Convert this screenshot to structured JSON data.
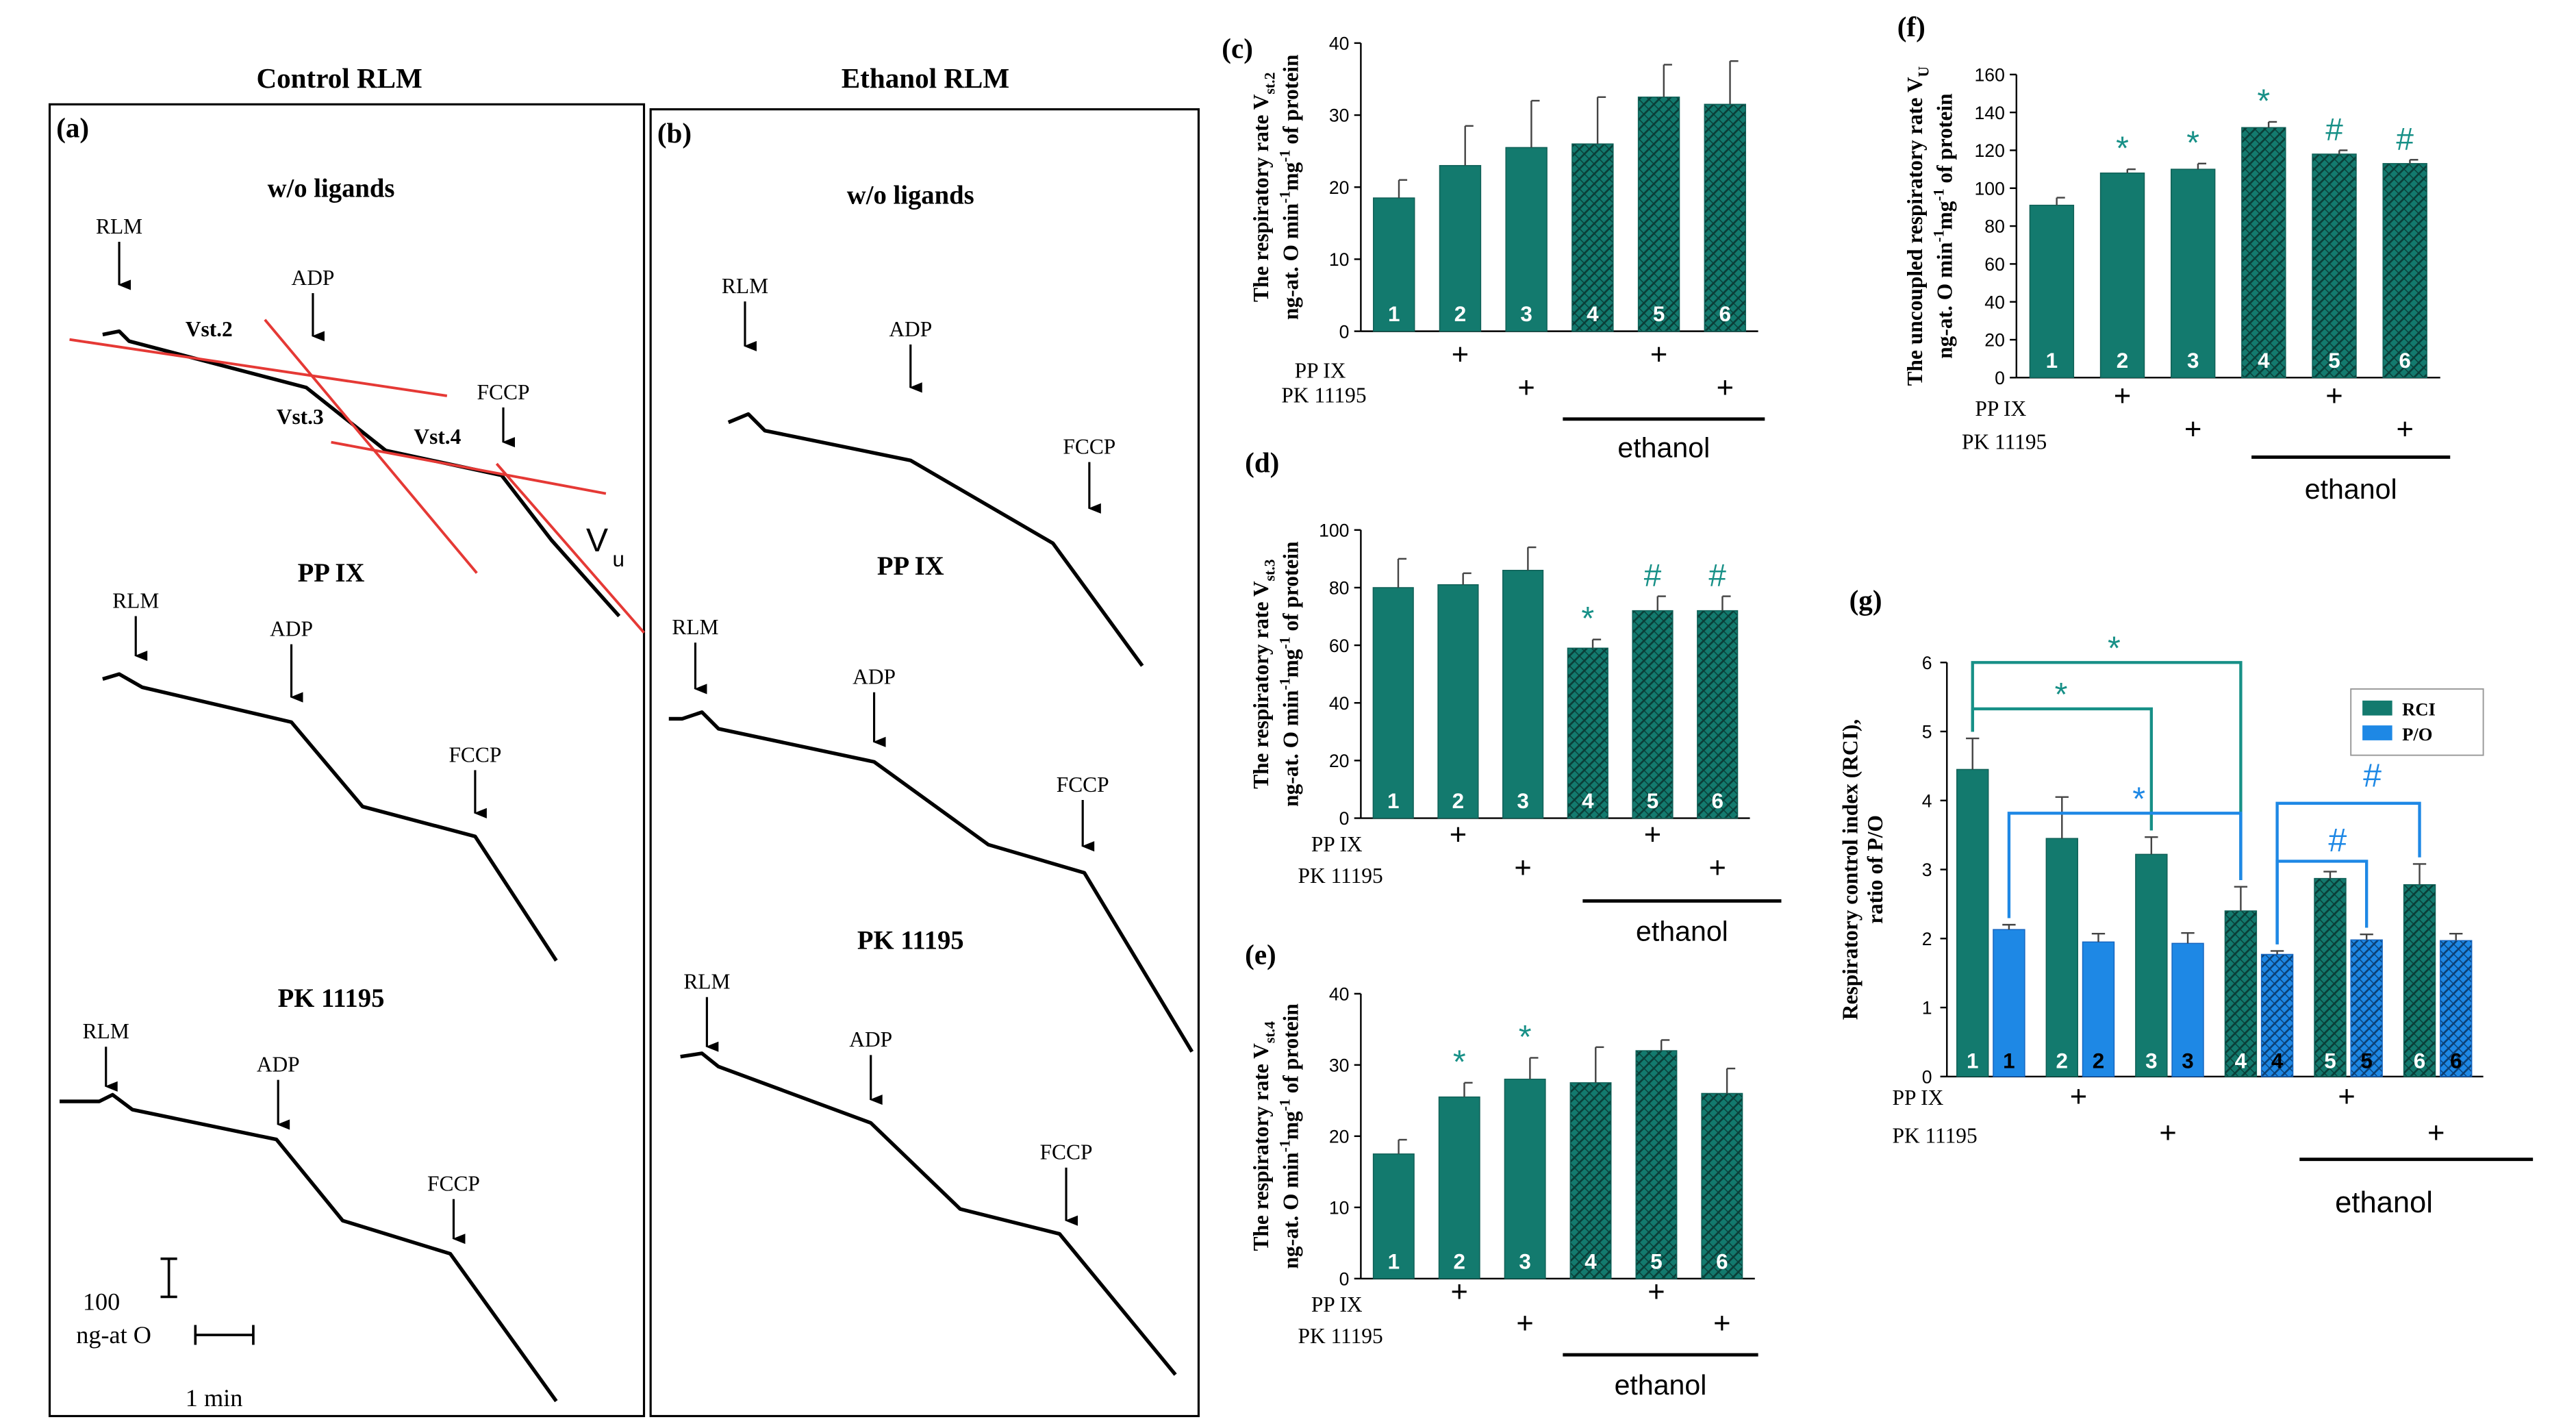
{
  "colors": {
    "teal": "#137a6e",
    "blue": "#1e88e5",
    "red": "#e53935",
    "stat_teal": "#179087",
    "stat_blue": "#1e88e5",
    "ink": "#000000"
  },
  "traces": [
    {
      "panel": "a",
      "header": "Control RLM",
      "sections": [
        {
          "title": "w/o ligands",
          "labels": [
            "RLM",
            "ADP",
            "FCCP",
            "Vst.2",
            "Vst.3",
            "Vst.4",
            "V",
            "u"
          ]
        },
        {
          "title": "PP IX",
          "labels": [
            "RLM",
            "ADP",
            "FCCP"
          ]
        },
        {
          "title": "PK 11195",
          "labels": [
            "RLM",
            "ADP",
            "FCCP"
          ]
        }
      ],
      "scale_y": "100",
      "scale_y_unit": "ng-at O",
      "scale_x": "1 min"
    },
    {
      "panel": "b",
      "header": "Ethanol RLM",
      "sections": [
        {
          "title": "w/o ligands",
          "labels": [
            "RLM",
            "ADP",
            "FCCP"
          ]
        },
        {
          "title": "PP IX",
          "labels": [
            "RLM",
            "ADP",
            "FCCP"
          ]
        },
        {
          "title": "PK 11195",
          "labels": [
            "RLM",
            "ADP",
            "FCCP"
          ]
        }
      ]
    }
  ],
  "chart_data": [
    {
      "panel": "c",
      "type": "bar",
      "ylim": [
        0,
        40
      ],
      "yticks": [
        0,
        10,
        20,
        30,
        40
      ],
      "ylabel_lines": [
        "The respiratory rate V",
        "st.2",
        "ng-at. O min",
        "-1",
        "mg",
        "-1",
        " of protein"
      ],
      "categories": [
        "1",
        "2",
        "3",
        "4",
        "5",
        "6"
      ],
      "values": [
        18.5,
        23,
        25.5,
        26,
        32.5,
        31.5
      ],
      "errors": [
        2.5,
        5.5,
        6.5,
        6.5,
        4.5,
        6
      ],
      "marks": [
        "",
        "",
        "",
        "",
        "",
        ""
      ],
      "treatments": {
        "pp_ix": "PP IX",
        "pk": "PK 11195",
        "plus": "+",
        "ethanol": "ethanol"
      }
    },
    {
      "panel": "d",
      "type": "bar",
      "ylim": [
        0,
        100
      ],
      "yticks": [
        0,
        20,
        40,
        60,
        80,
        100
      ],
      "ylabel_lines": [
        "The respiratory rate V",
        "st.3",
        "ng-at. O min",
        "-1",
        "mg",
        "-1",
        " of protein"
      ],
      "categories": [
        "1",
        "2",
        "3",
        "4",
        "5",
        "6"
      ],
      "values": [
        80,
        81,
        86,
        59,
        72,
        72
      ],
      "errors": [
        10,
        4,
        8,
        3,
        5,
        5
      ],
      "marks": [
        "",
        "",
        "",
        "*",
        "#",
        "#"
      ],
      "treatments": {
        "pp_ix": "PP IX",
        "pk": "PK 11195",
        "plus": "+",
        "ethanol": "ethanol"
      }
    },
    {
      "panel": "e",
      "type": "bar",
      "ylim": [
        0,
        40
      ],
      "yticks": [
        0,
        10,
        20,
        30,
        40
      ],
      "ylabel_lines": [
        "The respiratory rate V",
        "st.4",
        "ng-at. O min",
        "-1",
        "mg",
        "-1",
        " of protein"
      ],
      "categories": [
        "1",
        "2",
        "3",
        "4",
        "5",
        "6"
      ],
      "values": [
        17.5,
        25.5,
        28,
        27.5,
        32,
        26
      ],
      "errors": [
        2,
        2,
        3,
        5,
        1.5,
        3.5
      ],
      "marks": [
        "",
        "*",
        "*",
        "",
        "",
        ""
      ],
      "treatments": {
        "pp_ix": "PP IX",
        "pk": "PK 11195",
        "plus": "+",
        "ethanol": "ethanol"
      }
    },
    {
      "panel": "f",
      "type": "bar",
      "ylim": [
        0,
        160
      ],
      "yticks": [
        0,
        20,
        40,
        60,
        80,
        100,
        120,
        140,
        160
      ],
      "ylabel_lines": [
        "The uncoupled respiratory rate V",
        "U",
        "ng-at. O min",
        "-1",
        "mg",
        "-1",
        " of protein"
      ],
      "categories": [
        "1",
        "2",
        "3",
        "4",
        "5",
        "6"
      ],
      "values": [
        91,
        108,
        110,
        132,
        118,
        113
      ],
      "errors": [
        4,
        2,
        3,
        3,
        2,
        2
      ],
      "marks": [
        "",
        "*",
        "*",
        "*",
        "#",
        "#"
      ],
      "treatments": {
        "pp_ix": "PP IX",
        "pk": "PK 11195",
        "plus": "+",
        "ethanol": "ethanol"
      }
    },
    {
      "panel": "g",
      "type": "bar",
      "ylim": [
        0,
        6
      ],
      "yticks": [
        0,
        1,
        2,
        3,
        4,
        5,
        6
      ],
      "ylabel_lines": [
        "Respiratory control index (RCI),",
        "ratio of P/O"
      ],
      "categories": [
        "1",
        "2",
        "3",
        "4",
        "5",
        "6"
      ],
      "series": [
        {
          "name": "RCI",
          "values": [
            4.45,
            3.45,
            3.22,
            2.4,
            2.87,
            2.78
          ],
          "errors": [
            0.45,
            0.6,
            0.25,
            0.35,
            0.1,
            0.3
          ]
        },
        {
          "name": "P/O",
          "values": [
            2.13,
            1.95,
            1.93,
            1.77,
            1.98,
            1.97
          ],
          "errors": [
            0.07,
            0.12,
            0.15,
            0.05,
            0.08,
            0.1
          ]
        }
      ],
      "brackets": [
        {
          "from": [
            1,
            "RCI"
          ],
          "to": [
            4,
            "RCI"
          ],
          "mark": "*"
        },
        {
          "from": [
            1,
            "RCI"
          ],
          "to": [
            3,
            "RCI"
          ],
          "mark": "*"
        },
        {
          "from": [
            1,
            "P/O"
          ],
          "to": [
            4,
            "RCI"
          ],
          "mark": "*"
        },
        {
          "from": [
            4,
            "P/O"
          ],
          "to": [
            6,
            "RCI"
          ],
          "mark": "#"
        },
        {
          "from": [
            4,
            "P/O"
          ],
          "to": [
            5,
            "P/O"
          ],
          "mark": "#"
        }
      ],
      "treatments": {
        "pp_ix": "PP IX",
        "pk": "PK 11195",
        "plus": "+",
        "ethanol": "ethanol"
      }
    }
  ]
}
